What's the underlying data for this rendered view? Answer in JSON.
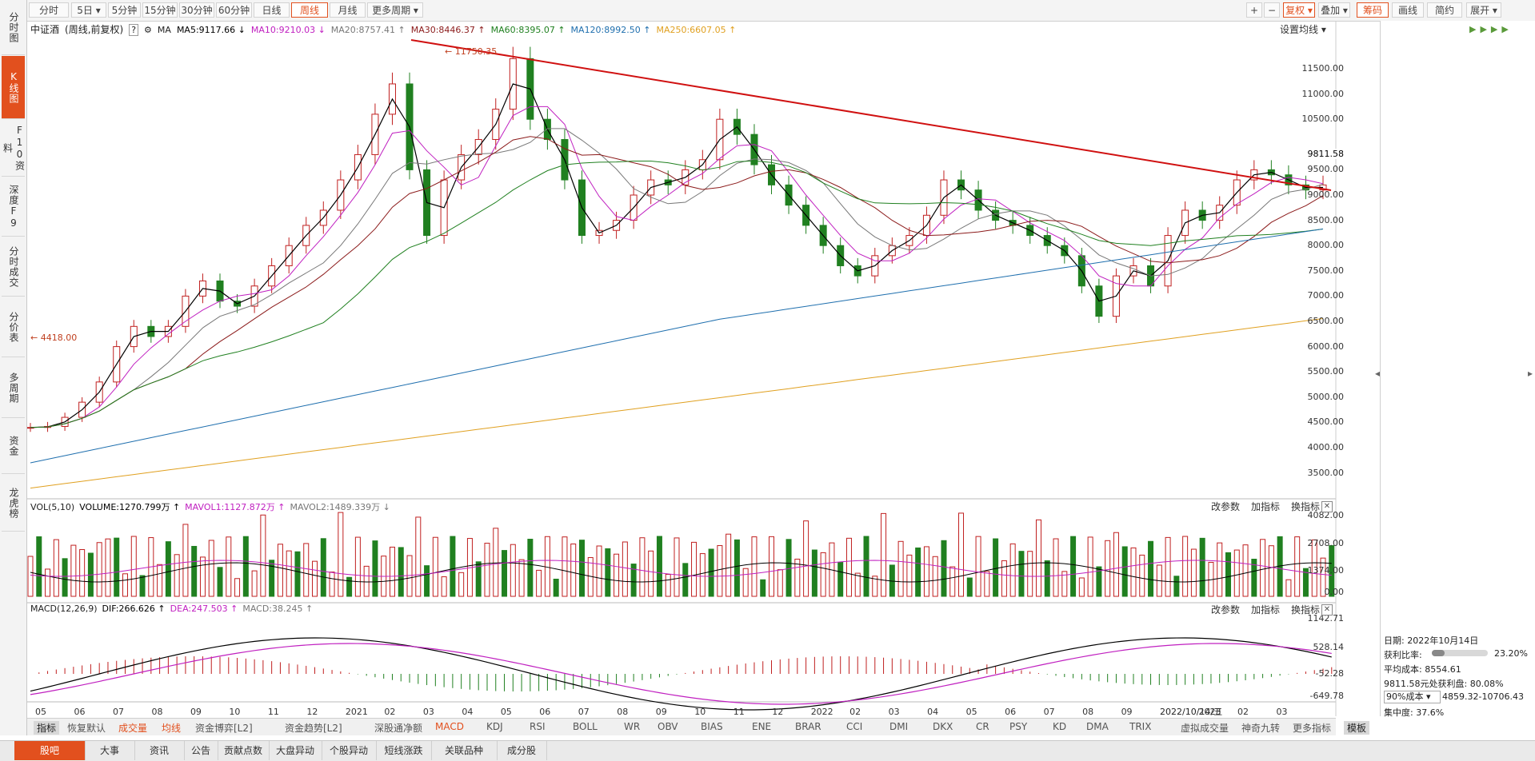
{
  "sidebar": {
    "items": [
      {
        "label": "分时图",
        "active": false
      },
      {
        "label": "K线图",
        "active": true
      },
      {
        "label": "F10资料",
        "active": false
      },
      {
        "label": "深度F9",
        "active": false
      },
      {
        "label": "分时成交",
        "active": false
      },
      {
        "label": "分价表",
        "active": false
      },
      {
        "label": "多周期",
        "active": false
      },
      {
        "label": "资金",
        "active": false
      },
      {
        "label": "龙虎榜",
        "active": false
      }
    ]
  },
  "toolbar": {
    "periods": [
      "分时",
      "5日 ▾",
      "5分钟",
      "15分钟",
      "30分钟",
      "60分钟",
      "日线",
      "周线",
      "月线",
      "更多周期 ▾"
    ],
    "active_period": "周线",
    "right_buttons": [
      "+",
      "−",
      "复权 ▾",
      "叠加 ▾",
      "筹码",
      "画线",
      "简约",
      "展开 ▾"
    ]
  },
  "main": {
    "name": "中证酒",
    "mode": "(周线,前复权)",
    "help": "?",
    "gear_icon": "gear-icon",
    "ma_label": "MA",
    "ma": [
      {
        "t": "MA5:9117.66 ↓",
        "c": "#000000"
      },
      {
        "t": "MA10:9210.03 ↓",
        "c": "#c020c0"
      },
      {
        "t": "MA20:8757.41 ↑",
        "c": "#777777"
      },
      {
        "t": "MA30:8446.37 ↑",
        "c": "#8b1a1a"
      },
      {
        "t": "MA60:8395.07 ↑",
        "c": "#208020"
      },
      {
        "t": "MA120:8992.50 ↑",
        "c": "#1f6fae"
      },
      {
        "t": "MA250:6607.05 ↑",
        "c": "#e0a020"
      }
    ],
    "set_ma": "设置均线 ▾",
    "high_label": "11750.35",
    "low_label": "4418.00",
    "price_ticks": [
      "11500.00",
      "11000.00",
      "10500.00",
      "9811.58",
      "9500.00",
      "9000.00",
      "8500.00",
      "8000.00",
      "7500.00",
      "7000.00",
      "6500.00",
      "6000.00",
      "5500.00",
      "5000.00",
      "4500.00",
      "4000.00",
      "3500.00"
    ]
  },
  "vol": {
    "head": [
      "VOL(5,10)",
      "VOLUME:1270.799万 ↑",
      "MAVOL1:1127.872万 ↑",
      "MAVOL2:1489.339万 ↓"
    ],
    "buttons": [
      "改参数",
      "加指标",
      "换指标"
    ],
    "ticks": [
      "4082.00",
      "2708.00",
      "1374.00",
      "0.00"
    ]
  },
  "macd": {
    "head": [
      "MACD(12,26,9)",
      "DIF:266.626 ↑",
      "DEA:247.503 ↑",
      "MACD:38.245 ↑"
    ],
    "buttons": [
      "改参数",
      "加指标",
      "换指标"
    ],
    "ticks": [
      "1142.71",
      "528.14",
      "-52.28",
      "-649.78"
    ]
  },
  "time_axis": {
    "labels": [
      "05",
      "06",
      "07",
      "08",
      "09",
      "10",
      "11",
      "12",
      "2021",
      "02",
      "03",
      "04",
      "05",
      "06",
      "07",
      "08",
      "09",
      "10",
      "11",
      "12",
      "2022",
      "02",
      "03",
      "04",
      "05",
      "06",
      "07",
      "08",
      "09",
      "2022/10/14/五",
      "2023",
      "02",
      "03"
    ]
  },
  "indicator_tabs": [
    "指标",
    "恢复默认",
    "成交量",
    "均线",
    "资金博弈[L2]",
    "资金趋势[L2]",
    "深股通净额",
    "MACD",
    "KDJ",
    "RSI",
    "BOLL",
    "WR",
    "OBV",
    "BIAS",
    "ENE",
    "BRAR",
    "CCI",
    "DMI",
    "DKX",
    "CR",
    "PSY",
    "KD",
    "DMA",
    "TRIX",
    "虚拟成交量",
    "神奇九转",
    "更多指标",
    "模板"
  ],
  "bottom_tabs": [
    "股吧",
    "大事",
    "资讯",
    "公告",
    "贡献点数",
    "大盘异动",
    "个股异动",
    "短线涨跌",
    "关联品种",
    "成分股"
  ],
  "chip": {
    "date": "日期: 2022年10月14日",
    "profit_ratio_label": "获利比率:",
    "profit_ratio": "23.20%",
    "profit_ratio_value": 0.232,
    "avg_cost": "平均成本: 8554.61",
    "profit_at": "9811.58元处获利盘: 80.08%",
    "cost_select": "90%成本 ▾",
    "cost_range": "4859.32-10706.43",
    "concentration": "集中度: 37.6%"
  }
}
